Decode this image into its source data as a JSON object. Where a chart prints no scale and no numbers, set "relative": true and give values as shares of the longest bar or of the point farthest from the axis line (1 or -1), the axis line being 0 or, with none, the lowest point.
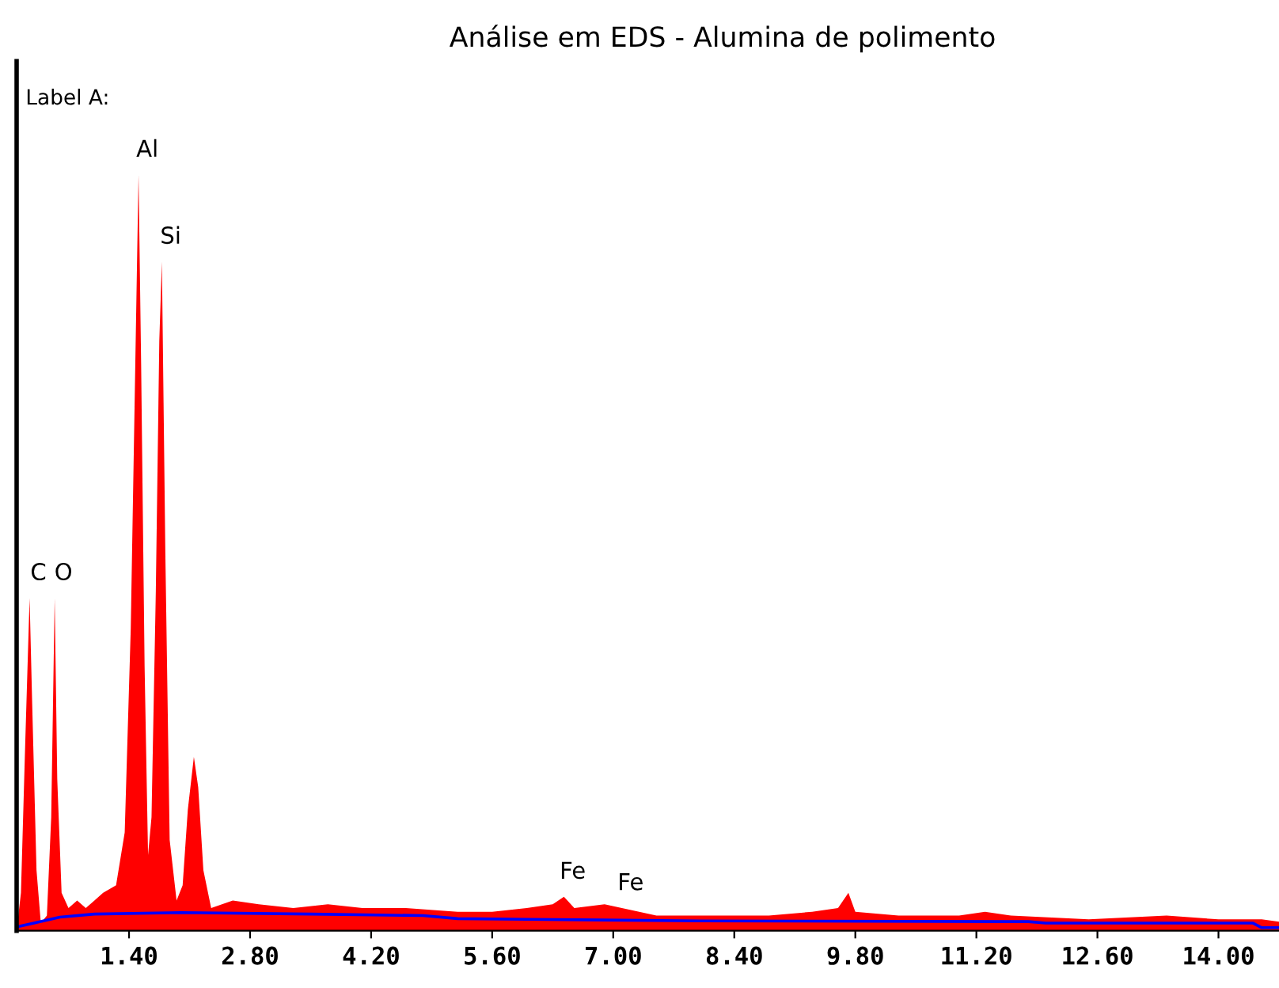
{
  "chart_data": {
    "type": "area",
    "title": "Análise em EDS - Alumina de polimento",
    "relative": true,
    "xlim": [
      0.1,
      14.7
    ],
    "xticks": [
      {
        "value": 1.4,
        "label": "1.40"
      },
      {
        "value": 2.8,
        "label": "2.80"
      },
      {
        "value": 4.2,
        "label": "4.20"
      },
      {
        "value": 5.6,
        "label": "5.60"
      },
      {
        "value": 7.0,
        "label": "7.00"
      },
      {
        "value": 8.4,
        "label": "8.40"
      },
      {
        "value": 9.8,
        "label": "9.80"
      },
      {
        "value": 11.2,
        "label": "11.20"
      },
      {
        "value": 12.6,
        "label": "12.60"
      },
      {
        "value": 14.0,
        "label": "14.00"
      }
    ],
    "tick_labels": "x",
    "grid": false,
    "legend": false,
    "series": [
      {
        "color": "#ff0000",
        "x": [
          0.1,
          0.15,
          0.2,
          0.25,
          0.28,
          0.33,
          0.38,
          0.45,
          0.5,
          0.54,
          0.57,
          0.62,
          0.7,
          0.8,
          0.9,
          1.0,
          1.1,
          1.25,
          1.35,
          1.42,
          1.48,
          1.51,
          1.54,
          1.58,
          1.62,
          1.66,
          1.71,
          1.75,
          1.78,
          1.82,
          1.87,
          1.95,
          2.02,
          2.08,
          2.15,
          2.2,
          2.26,
          2.35,
          2.6,
          2.9,
          3.3,
          3.7,
          4.1,
          4.6,
          5.2,
          5.6,
          6.0,
          6.3,
          6.43,
          6.55,
          6.9,
          7.1,
          7.5,
          8.0,
          8.8,
          9.3,
          9.6,
          9.72,
          9.8,
          10.3,
          11.0,
          11.3,
          11.6,
          12.5,
          13.4,
          14.0,
          14.5,
          14.7
        ],
        "values": [
          0.0,
          0.05,
          0.25,
          0.44,
          0.3,
          0.08,
          0.01,
          0.02,
          0.15,
          0.44,
          0.2,
          0.05,
          0.03,
          0.04,
          0.03,
          0.04,
          0.05,
          0.06,
          0.13,
          0.4,
          0.8,
          1.0,
          0.75,
          0.35,
          0.1,
          0.15,
          0.45,
          0.78,
          0.885,
          0.5,
          0.12,
          0.04,
          0.06,
          0.16,
          0.23,
          0.19,
          0.08,
          0.03,
          0.04,
          0.035,
          0.03,
          0.035,
          0.03,
          0.03,
          0.025,
          0.025,
          0.03,
          0.035,
          0.045,
          0.03,
          0.035,
          0.03,
          0.02,
          0.02,
          0.02,
          0.025,
          0.03,
          0.05,
          0.025,
          0.02,
          0.02,
          0.025,
          0.02,
          0.015,
          0.02,
          0.015,
          0.015,
          0.012
        ]
      },
      {
        "type": "line",
        "color": "#0000ff",
        "x": [
          0.1,
          0.3,
          0.6,
          1.0,
          2.0,
          3.5,
          4.8,
          5.2,
          6.0,
          8.0,
          11.8,
          12.0,
          14.4,
          14.5,
          14.7
        ],
        "values": [
          0.005,
          0.01,
          0.018,
          0.022,
          0.024,
          0.022,
          0.02,
          0.016,
          0.015,
          0.013,
          0.012,
          0.01,
          0.01,
          0.004,
          0.004
        ]
      }
    ],
    "annotations": [
      "Label A:",
      {
        "text": "C",
        "x": 0.25,
        "y": 0.44
      },
      {
        "text": "O",
        "x": 0.54,
        "y": 0.44
      },
      {
        "text": "Al",
        "x": 1.51,
        "y": 1.0
      },
      {
        "text": "Si",
        "x": 1.78,
        "y": 0.885
      },
      {
        "text": "Fe",
        "x": 6.43,
        "y": 0.045
      },
      {
        "text": "Fe",
        "x": 7.1,
        "y": 0.03
      }
    ]
  }
}
